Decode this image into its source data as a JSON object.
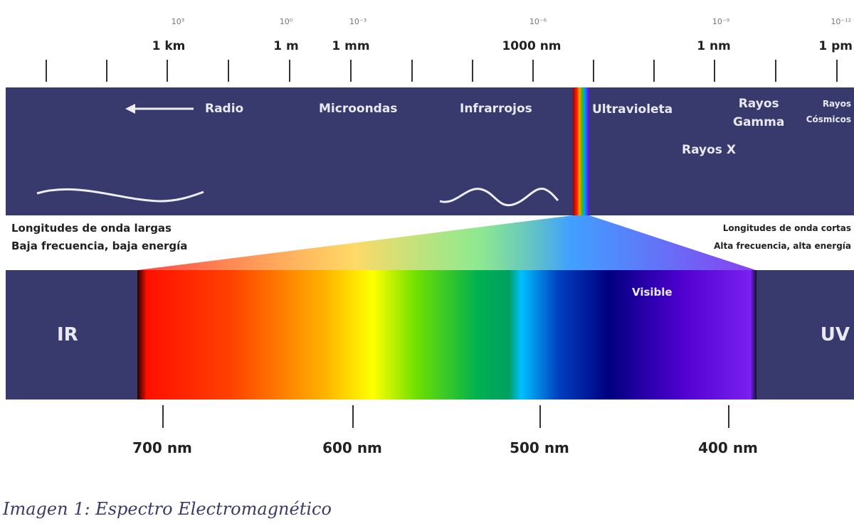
{
  "top_scale": {
    "exponents": [
      "10³",
      "10⁰",
      "10⁻³",
      "10⁻⁶",
      "10⁻⁹",
      "10⁻¹²"
    ],
    "units": [
      "1 km",
      "1 m",
      "1 mm",
      "1000 nm",
      "1 nm",
      "1 pm"
    ]
  },
  "spectrum_band": {
    "radio": "Radio",
    "microondas": "Microondas",
    "infrarrojos": "Infrarrojos",
    "ultravioleta": "Ultravioleta",
    "rayos_gamma": "Rayos\nGamma",
    "rayos_x": "Rayos X",
    "rayos_cosmicos": "Rayos\nCósmicos"
  },
  "left_note": {
    "line1": "Longitudes de onda largas",
    "line2": "Baja frecuencia, baja energía"
  },
  "right_note": {
    "line1": "Longitudes de onda cortas",
    "line2": "Alta frecuencia, alta energía"
  },
  "visible_band": {
    "ir": "IR",
    "uv": "UV",
    "visible": "Visible"
  },
  "bottom_scale": [
    "700 nm",
    "600 nm",
    "500 nm",
    "400 nm"
  ],
  "caption": "Imagen 1: Espectro Electromagnético",
  "colors": {
    "band": "#38396c"
  }
}
